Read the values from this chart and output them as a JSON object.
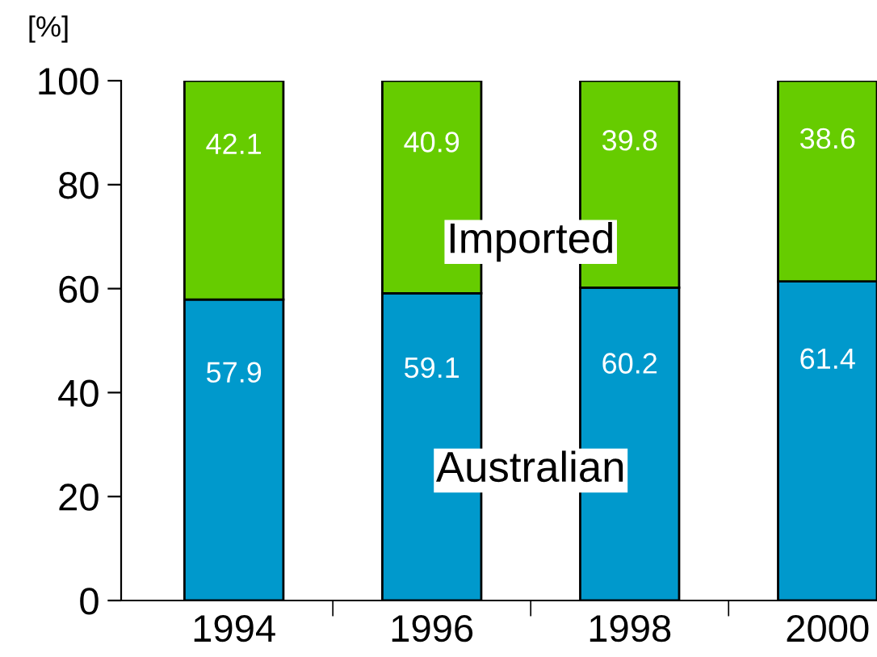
{
  "chart_data": {
    "type": "bar",
    "stacked": true,
    "ylabel": "[%]",
    "categories": [
      "1994",
      "1996",
      "1998",
      "2000"
    ],
    "series": [
      {
        "name": "Australian",
        "color": "#0099cc",
        "values": [
          57.9,
          59.1,
          60.2,
          61.4
        ]
      },
      {
        "name": "Imported",
        "color": "#66cc00",
        "values": [
          42.1,
          40.9,
          39.8,
          38.6
        ]
      }
    ],
    "ylim": [
      0,
      100
    ],
    "yticks": [
      0,
      20,
      40,
      60,
      80,
      100
    ],
    "data_labels": true,
    "grid": false,
    "legend": false
  }
}
